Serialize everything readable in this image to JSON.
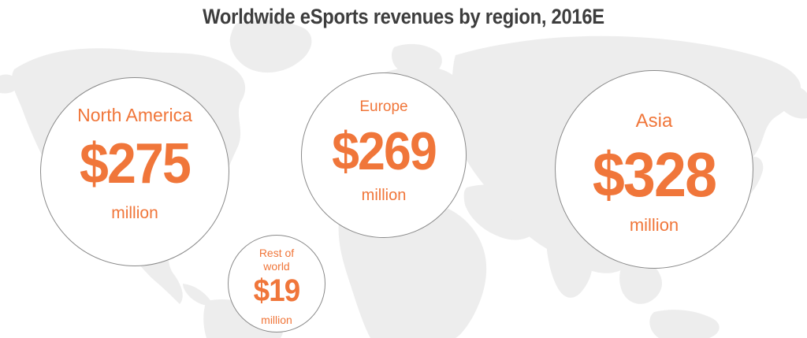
{
  "chart_data": {
    "type": "bubble",
    "title": "Worldwide eSports revenues by region, 2016E",
    "unit": "million",
    "series": [
      {
        "name": "Revenue",
        "points": [
          {
            "region": "North America",
            "value": 275,
            "label": "$275"
          },
          {
            "region": "Europe",
            "value": 269,
            "label": "$269"
          },
          {
            "region": "Asia",
            "value": 328,
            "label": "$328"
          },
          {
            "region": "Rest of world",
            "value": 19,
            "label": "$19"
          }
        ]
      }
    ],
    "colors": {
      "accent": "#f0763a",
      "title": "#3d3d3d",
      "map": "#ededed",
      "bubble_border": "#8a8a8a"
    }
  }
}
